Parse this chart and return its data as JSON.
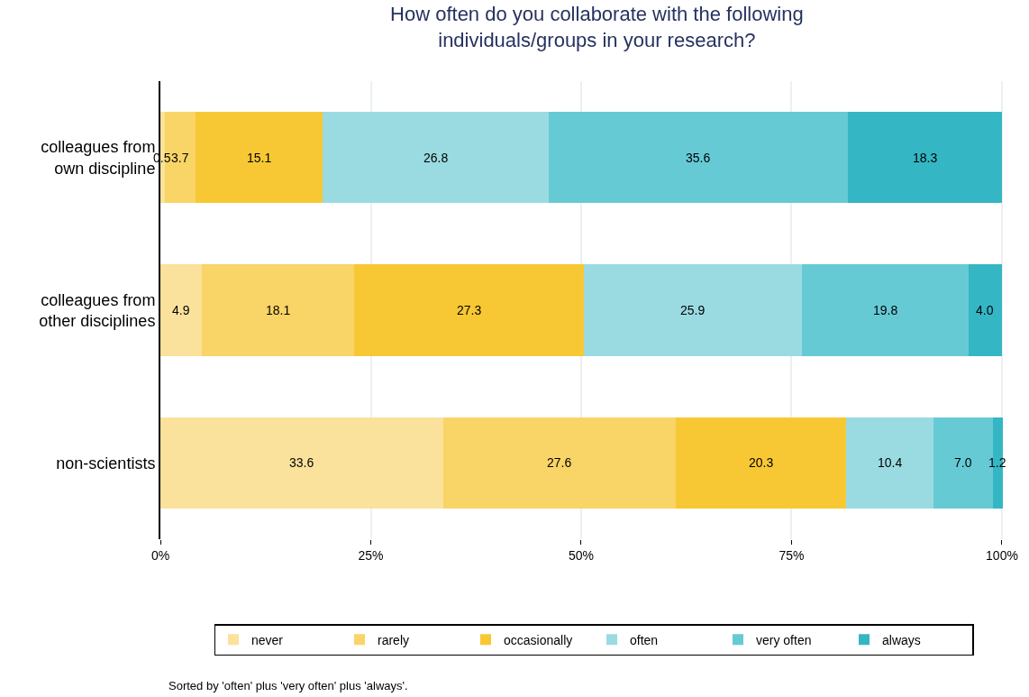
{
  "chart_data": {
    "type": "bar",
    "orientation": "horizontal",
    "stacked": true,
    "title": "How often do you collaborate with the following\nindividuals/groups in your research?",
    "categories": [
      "colleagues from\nown discipline",
      "colleagues from\nother disciplines",
      "non-scientists"
    ],
    "series": [
      {
        "name": "never",
        "color": "#fae29c",
        "values": [
          0.5,
          4.9,
          33.6
        ],
        "value_labels": [
          "0.5",
          "4.9",
          "33.6"
        ]
      },
      {
        "name": "rarely",
        "color": "#f9d466",
        "values": [
          3.7,
          18.1,
          27.6
        ],
        "value_labels": [
          "3.7",
          "18.1",
          "27.6"
        ]
      },
      {
        "name": "occasionally",
        "color": "#f8c834",
        "values": [
          15.1,
          27.3,
          20.3
        ],
        "value_labels": [
          "15.1",
          "27.3",
          "20.3"
        ]
      },
      {
        "name": "often",
        "color": "#9adbe2",
        "values": [
          26.8,
          25.9,
          10.4
        ],
        "value_labels": [
          "26.8",
          "25.9",
          "10.4"
        ]
      },
      {
        "name": "very often",
        "color": "#66cad5",
        "values": [
          35.6,
          19.8,
          7.0
        ],
        "value_labels": [
          "35.6",
          "19.8",
          "7.0"
        ]
      },
      {
        "name": "always",
        "color": "#34b6c4",
        "values": [
          18.3,
          4.0,
          1.2
        ],
        "value_labels": [
          "18.3",
          "4.0",
          "1.2"
        ]
      }
    ],
    "xlim": [
      0,
      103
    ],
    "xticks": [
      {
        "value": 0,
        "label": "0%"
      },
      {
        "value": 25,
        "label": "25%"
      },
      {
        "value": 50,
        "label": "50%"
      },
      {
        "value": 75,
        "label": "75%"
      },
      {
        "value": 100,
        "label": "100%"
      }
    ],
    "grid": "x",
    "legend": "bottom",
    "annotations": [
      "Sorted by 'often' plus 'very often' plus 'always'."
    ]
  }
}
